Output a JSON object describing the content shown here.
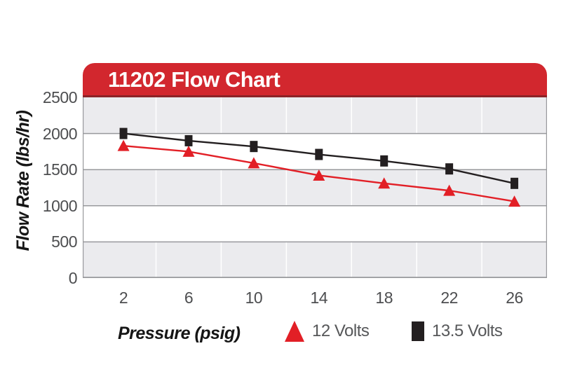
{
  "chart_data": {
    "type": "line",
    "title": "11202 Flow Chart",
    "xlabel": "Pressure (psig)",
    "ylabel": "Flow Rate (lbs/hr)",
    "x": [
      2,
      6,
      10,
      14,
      18,
      22,
      26
    ],
    "y_ticks": [
      0,
      500,
      1000,
      1500,
      2000,
      2500
    ],
    "xlim": [
      -0.5,
      28
    ],
    "ylim": [
      0,
      2500
    ],
    "grid": {
      "horizontal_step": 500,
      "vertical_lines_at_midpoints": [
        4,
        8,
        12,
        16,
        20,
        24
      ],
      "alternating_bands": true
    },
    "legend_position": "bottom",
    "series": [
      {
        "name": "12 Volts",
        "marker": "triangle",
        "color": "#e21f26",
        "values": [
          1830,
          1750,
          1590,
          1420,
          1310,
          1210,
          1060
        ]
      },
      {
        "name": "13.5 Volts",
        "marker": "square",
        "color": "#231f20",
        "values": [
          2000,
          1900,
          1820,
          1710,
          1620,
          1510,
          1310
        ]
      }
    ]
  },
  "colors": {
    "banner_bg": "#d2272e",
    "banner_border": "#8c2328",
    "banner_text": "#ffffff",
    "band_gray": "#ebebee",
    "band_white": "#ffffff",
    "grid_line": "#98999c",
    "vertical_grid_line": "#ffffff",
    "tick_text": "#4d4e50",
    "axis_title_text": "#161616",
    "legend_text": "#565759"
  }
}
